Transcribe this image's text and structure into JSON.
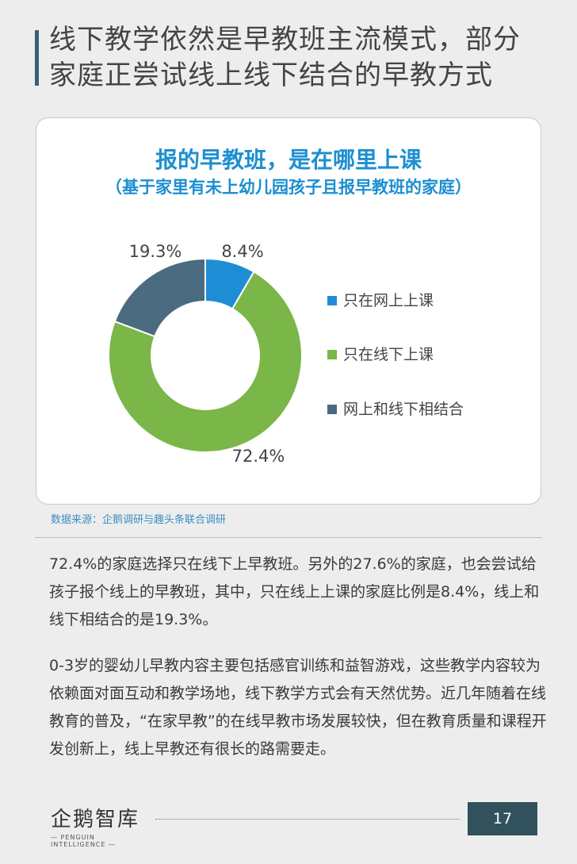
{
  "header": {
    "title_line1": "线下教学依然是早教班主流模式，部分",
    "title_line2": "家庭正尝试线上线下结合的早教方式"
  },
  "chart_data": {
    "type": "pie",
    "title": "报的早教班，是在哪里上课",
    "subtitle": "（基于家里有未上幼儿园孩子且报早教班的家庭）",
    "categories": [
      "只在网上上课",
      "只在线下上课",
      "网上和线下相结合"
    ],
    "values": [
      8.4,
      72.4,
      19.3
    ],
    "labels": [
      "8.4%",
      "72.4%",
      "19.3%"
    ],
    "colors": [
      "#1f8dd6",
      "#7ab648",
      "#4a6b80"
    ],
    "donut": true,
    "legend": "right"
  },
  "source": "数据来源：企鹅调研与趣头条联合调研",
  "body": {
    "p1": "72.4%的家庭选择只在线下上早教班。另外的27.6%的家庭，也会尝试给孩子报个线上的早教班，其中，只在线上上课的家庭比例是8.4%，线上和线下相结合的是19.3%。",
    "p2": "0-3岁的婴幼儿早教内容主要包括感官训练和益智游戏，这些教学内容较为依赖面对面互动和教学场地，线下教学方式会有天然优势。近几年随着在线教育的普及，“在家早教”的在线早教市场发展较快，但在教育质量和课程开发创新上，线上早教还有很长的路需要走。"
  },
  "footer": {
    "logo_name": "企鹅智库",
    "logo_en": "— PENGUIN INTELLIGENCE —",
    "page_number": "17"
  }
}
